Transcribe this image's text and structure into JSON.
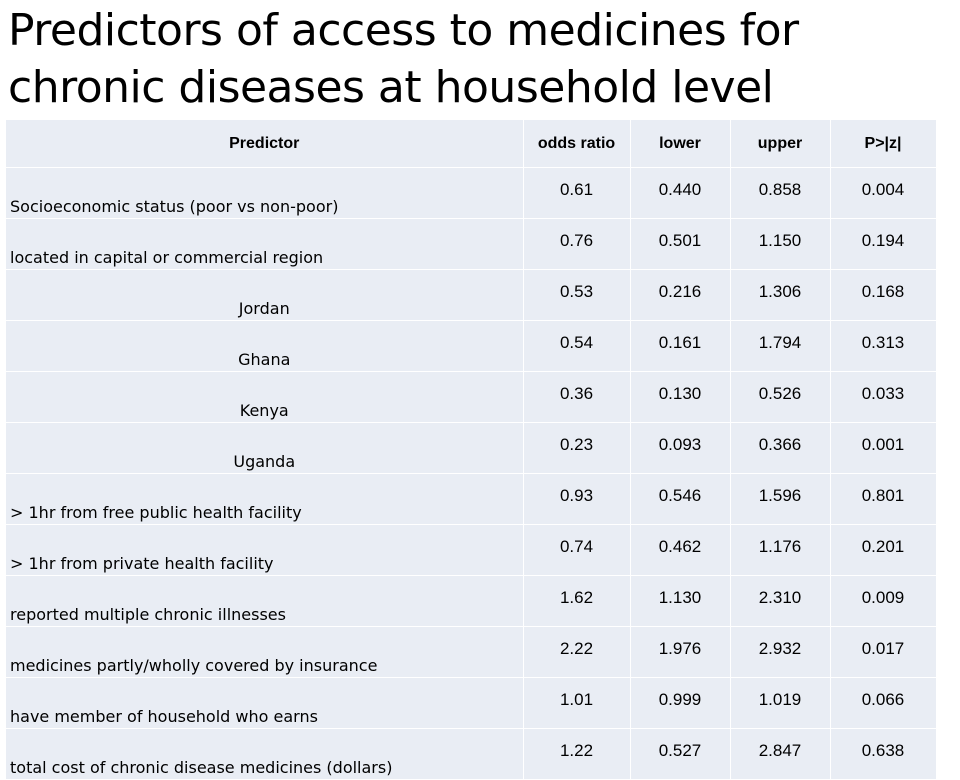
{
  "title": "Predictors of access to medicines for chronic diseases at household level",
  "table": {
    "headers": [
      "Predictor",
      "odds ratio",
      "lower",
      "upper",
      "P>|z|"
    ],
    "rows": [
      {
        "predictor": "Socioeconomic status (poor vs non-poor)",
        "odds_ratio": "0.61",
        "lower": "0.440",
        "upper": "0.858",
        "p": "0.004"
      },
      {
        "predictor": "located in capital or commercial region",
        "odds_ratio": "0.76",
        "lower": "0.501",
        "upper": "1.150",
        "p": "0.194"
      },
      {
        "predictor": "Jordan",
        "odds_ratio": "0.53",
        "lower": "0.216",
        "upper": "1.306",
        "p": "0.168"
      },
      {
        "predictor": "Ghana",
        "odds_ratio": "0.54",
        "lower": "0.161",
        "upper": "1.794",
        "p": "0.313"
      },
      {
        "predictor": "Kenya",
        "odds_ratio": "0.36",
        "lower": "0.130",
        "upper": "0.526",
        "p": "0.033"
      },
      {
        "predictor": "Uganda",
        "odds_ratio": "0.23",
        "lower": "0.093",
        "upper": "0.366",
        "p": "0.001"
      },
      {
        "predictor": "> 1hr from free public health facility",
        "odds_ratio": "0.93",
        "lower": "0.546",
        "upper": "1.596",
        "p": "0.801"
      },
      {
        "predictor": "> 1hr from private health facility",
        "odds_ratio": "0.74",
        "lower": "0.462",
        "upper": "1.176",
        "p": "0.201"
      },
      {
        "predictor": "reported multiple chronic illnesses",
        "odds_ratio": "1.62",
        "lower": "1.130",
        "upper": "2.310",
        "p": "0.009"
      },
      {
        "predictor": "medicines partly/wholly covered by insurance",
        "odds_ratio": "2.22",
        "lower": "1.976",
        "upper": "2.932",
        "p": "0.017"
      },
      {
        "predictor": "have member of household who earns",
        "odds_ratio": "1.01",
        "lower": "0.999",
        "upper": "1.019",
        "p": "0.066"
      },
      {
        "predictor": "total cost of chronic disease medicines (dollars)",
        "odds_ratio": "1.22",
        "lower": "0.527",
        "upper": "2.847",
        "p": "0.638"
      }
    ]
  }
}
